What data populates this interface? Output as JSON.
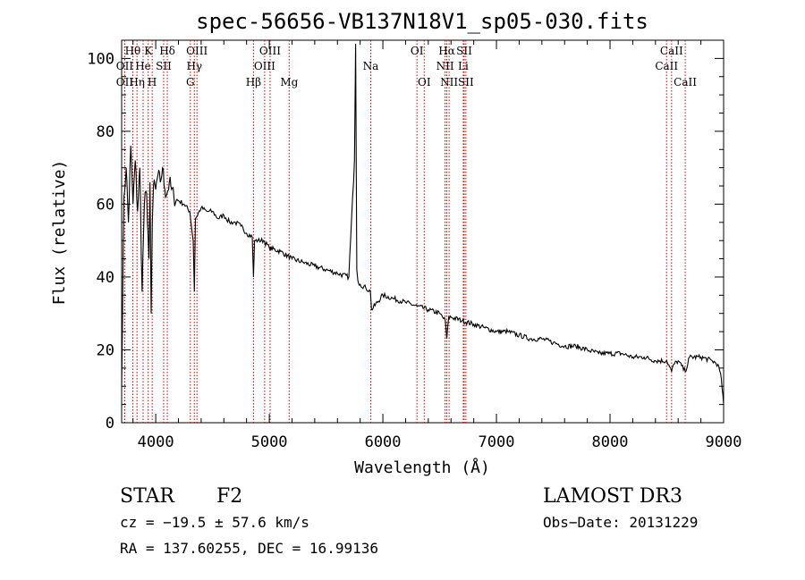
{
  "colors": {
    "axis": "#000000",
    "spectrum": "#000000",
    "line_marker": "#cc0000",
    "background": "#ffffff"
  },
  "chart_data": {
    "type": "line",
    "title": "spec-56656-VB137N18V1_sp05-030.fits",
    "xlabel": "Wavelength (Å)",
    "ylabel": "Flux (relative)",
    "xlim": [
      3700,
      9000
    ],
    "ylim": [
      0,
      105
    ],
    "xticks": [
      4000,
      5000,
      6000,
      7000,
      8000,
      9000
    ],
    "yticks": [
      0,
      20,
      40,
      60,
      80,
      100
    ],
    "grid": false,
    "series": [
      {
        "name": "spectrum",
        "x": [
          3700,
          3720,
          3740,
          3760,
          3780,
          3800,
          3820,
          3840,
          3860,
          3880,
          3900,
          3920,
          3940,
          3950,
          3960,
          3970,
          3980,
          4000,
          4020,
          4040,
          4060,
          4080,
          4100,
          4120,
          4140,
          4160,
          4180,
          4200,
          4250,
          4300,
          4330,
          4340,
          4350,
          4400,
          4450,
          4500,
          4550,
          4600,
          4650,
          4700,
          4750,
          4800,
          4850,
          4861,
          4870,
          4900,
          4950,
          5000,
          5100,
          5200,
          5300,
          5400,
          5500,
          5600,
          5700,
          5750,
          5760,
          5770,
          5780,
          5800,
          5850,
          5890,
          5900,
          6000,
          6100,
          6200,
          6300,
          6400,
          6500,
          6550,
          6563,
          6580,
          6600,
          6700,
          6800,
          6900,
          7000,
          7100,
          7200,
          7300,
          7400,
          7500,
          7600,
          7700,
          7800,
          7900,
          8000,
          8100,
          8200,
          8300,
          8400,
          8500,
          8542,
          8560,
          8600,
          8662,
          8700,
          8800,
          8900,
          8950,
          8980,
          9000
        ],
        "values": [
          10,
          62,
          70,
          55,
          76,
          60,
          72,
          58,
          70,
          36,
          60,
          63,
          45,
          66,
          30,
          55,
          65,
          64,
          68,
          66,
          70,
          64,
          63,
          66,
          64,
          62,
          61,
          61,
          60,
          58,
          50,
          36,
          56,
          59,
          58,
          58,
          56,
          57,
          55,
          55,
          54,
          52,
          51,
          40,
          50,
          50,
          50,
          48,
          47,
          45,
          44,
          43,
          42,
          41,
          40,
          72,
          104,
          42,
          39,
          38,
          37,
          36,
          31,
          35,
          34,
          33,
          32,
          31,
          30,
          28,
          23,
          29,
          29,
          28,
          27,
          26,
          25,
          25,
          24,
          23,
          23,
          22,
          21,
          21,
          20,
          19,
          19,
          19,
          18,
          18,
          17,
          17,
          14,
          16,
          17,
          14,
          18,
          18,
          17,
          16,
          12,
          5
        ]
      }
    ],
    "emission_lines": [
      {
        "label": "Hθ",
        "wavelength": 3798,
        "row": 1
      },
      {
        "label": "OII",
        "wavelength": 3727,
        "row": 2
      },
      {
        "label": "OII",
        "wavelength": 3727,
        "row": 3
      },
      {
        "label": "He",
        "wavelength": 3889,
        "row": 2
      },
      {
        "label": "Hη",
        "wavelength": 3835,
        "row": 3
      },
      {
        "label": "K",
        "wavelength": 3934,
        "row": 1
      },
      {
        "label": "H",
        "wavelength": 3969,
        "row": 3
      },
      {
        "label": "SII",
        "wavelength": 4070,
        "row": 2
      },
      {
        "label": "Hδ",
        "wavelength": 4102,
        "row": 1
      },
      {
        "label": "OIII",
        "wavelength": 4363,
        "row": 1
      },
      {
        "label": "Hγ",
        "wavelength": 4340,
        "row": 2
      },
      {
        "label": "G",
        "wavelength": 4305,
        "row": 3
      },
      {
        "label": "OIII",
        "wavelength": 5007,
        "row": 1
      },
      {
        "label": "OIII",
        "wavelength": 4959,
        "row": 2
      },
      {
        "label": "Hβ",
        "wavelength": 4861,
        "row": 3
      },
      {
        "label": "Mg",
        "wavelength": 5175,
        "row": 3
      },
      {
        "label": "Na",
        "wavelength": 5893,
        "row": 2
      },
      {
        "label": "OI",
        "wavelength": 6300,
        "row": 1
      },
      {
        "label": "OI",
        "wavelength": 6364,
        "row": 3
      },
      {
        "label": "Hα",
        "wavelength": 6563,
        "row": 1
      },
      {
        "label": "SII",
        "wavelength": 6716,
        "row": 1
      },
      {
        "label": "NII",
        "wavelength": 6548,
        "row": 2
      },
      {
        "label": "Li",
        "wavelength": 6708,
        "row": 2
      },
      {
        "label": "NII",
        "wavelength": 6583,
        "row": 3
      },
      {
        "label": "SII",
        "wavelength": 6731,
        "row": 3
      },
      {
        "label": "CaII",
        "wavelength": 8542,
        "row": 1
      },
      {
        "label": "CaII",
        "wavelength": 8498,
        "row": 2
      },
      {
        "label": "CaII",
        "wavelength": 8662,
        "row": 3
      }
    ],
    "annotations": {
      "class": "STAR",
      "subclass": "F2",
      "survey": "LAMOST DR3",
      "redshift": "cz = −19.5 ± 57.6 km/s",
      "obs_date": "Obs−Date: 20131229",
      "coords": "RA = 137.60255, DEC =  16.99136"
    }
  }
}
